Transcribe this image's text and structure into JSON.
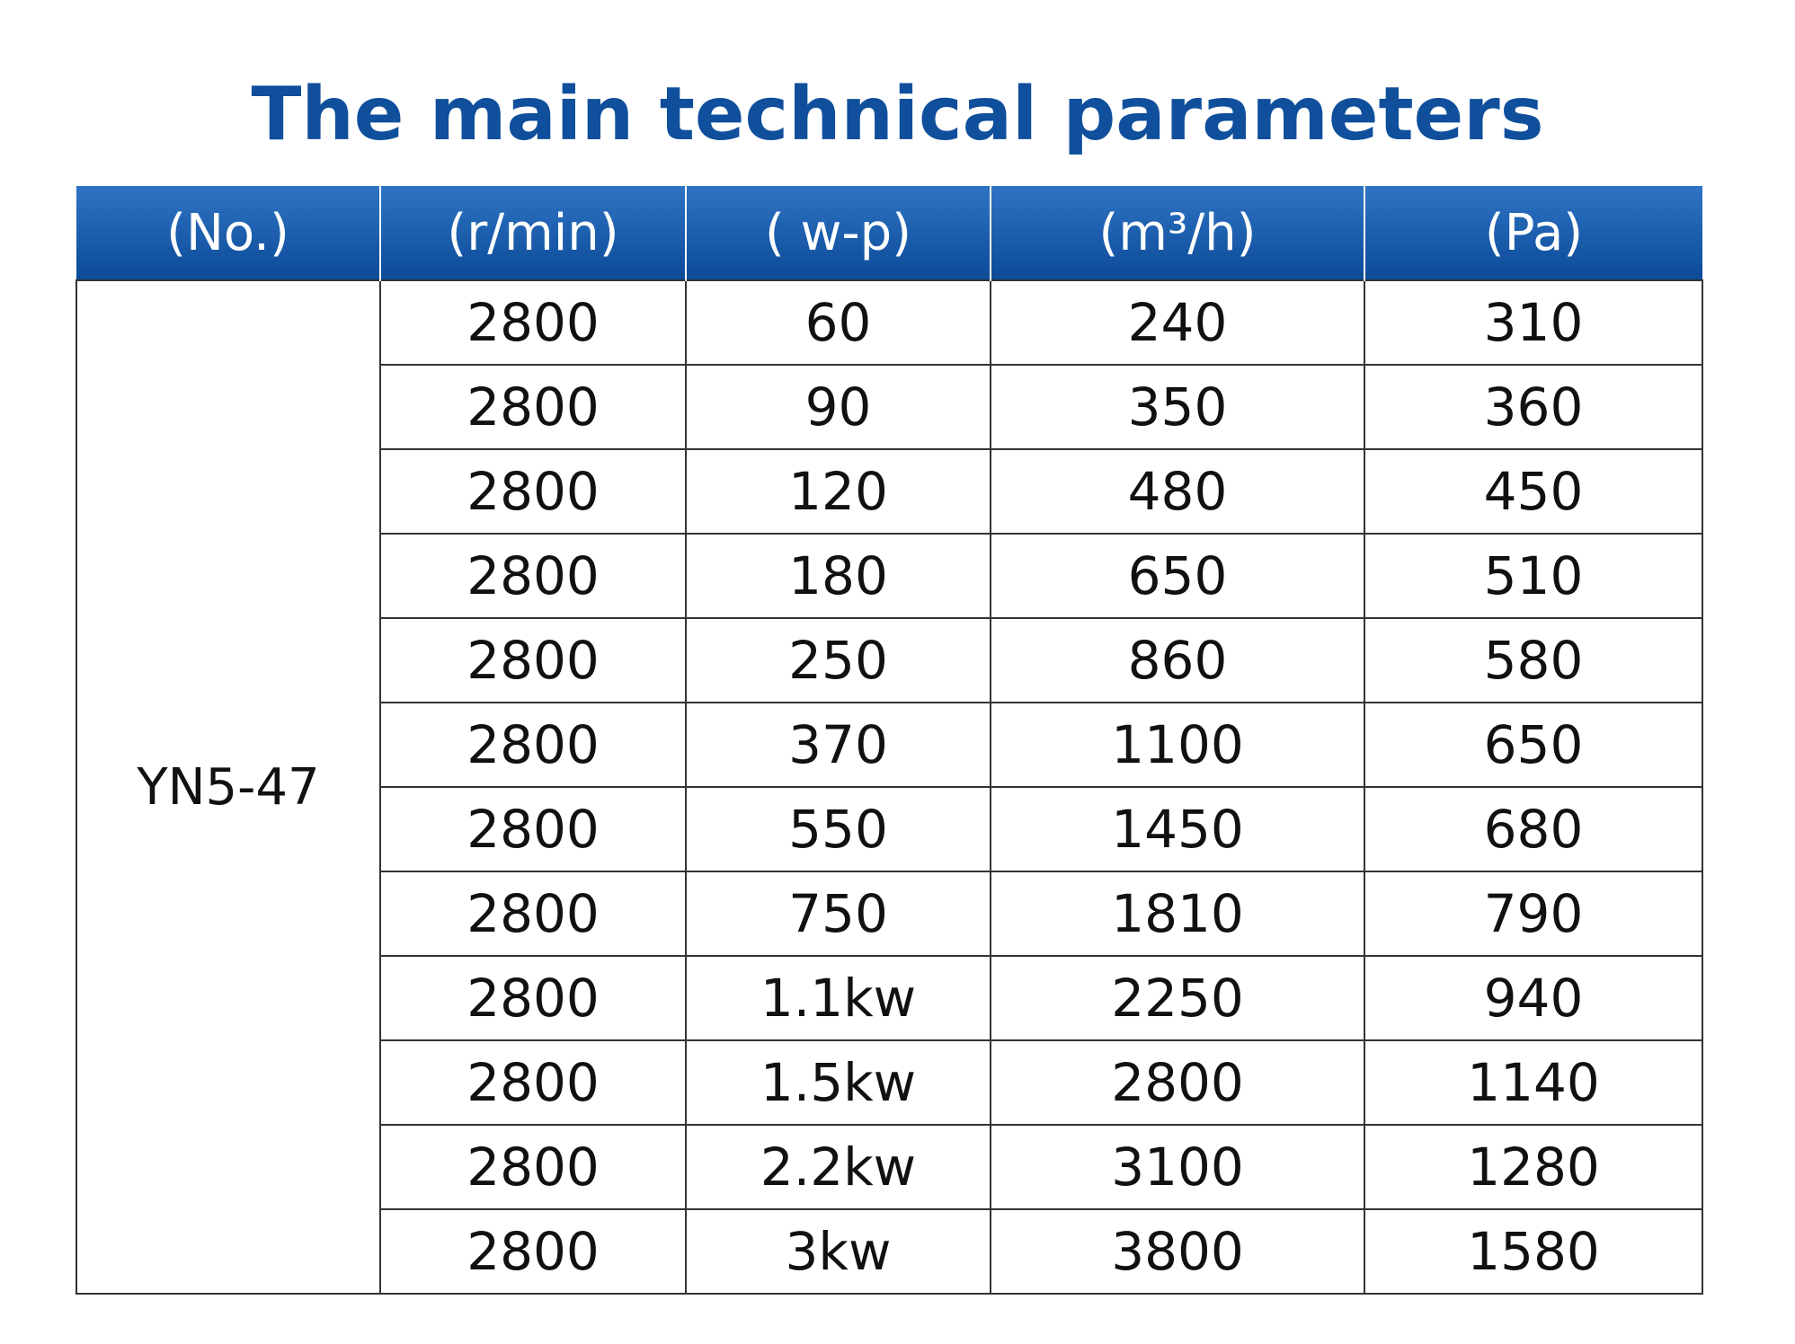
{
  "title": "The main technical parameters",
  "table": {
    "header": [
      "(No.)",
      "(r/min)",
      "(  w-p)",
      "(m³/h)",
      "(Pa)"
    ],
    "model": "YN5-47",
    "rows": [
      [
        2800,
        60,
        240,
        310
      ],
      [
        2800,
        90,
        350,
        360
      ],
      [
        2800,
        120,
        480,
        450
      ],
      [
        2800,
        180,
        650,
        510
      ],
      [
        2800,
        250,
        860,
        580
      ],
      [
        2800,
        370,
        1100,
        650
      ],
      [
        2800,
        550,
        1450,
        680
      ],
      [
        2800,
        750,
        1810,
        790
      ],
      [
        2800,
        "1.1kw",
        2250,
        940
      ],
      [
        2800,
        "1.5kw",
        2800,
        1140
      ],
      [
        2800,
        "2.2kw",
        3100,
        1280
      ],
      [
        2800,
        "3kw",
        3800,
        1580
      ]
    ]
  }
}
